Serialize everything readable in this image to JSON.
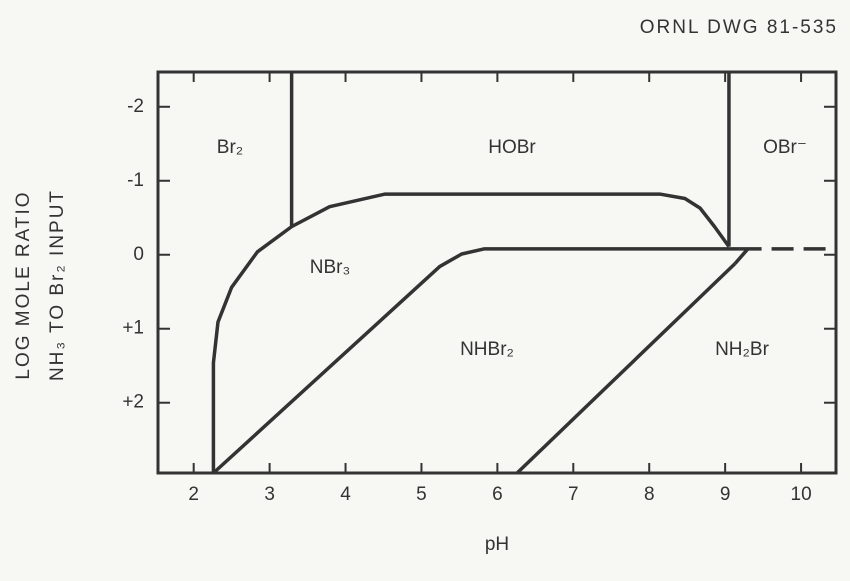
{
  "chart_data": {
    "type": "line",
    "note": "ORNL  DWG  81-535",
    "xlabel": "pH",
    "ylabel": [
      "LOG MOLE RATIO",
      "NH₃ TO Br₂ INPUT"
    ],
    "xlim": [
      1.53,
      10.46
    ],
    "ylim": [
      2.95,
      -2.47
    ],
    "xticks": [
      2,
      3,
      4,
      5,
      6,
      7,
      8,
      9,
      10
    ],
    "yticks": [
      -2,
      -1,
      0,
      {
        "value": 1,
        "label": "+1"
      },
      {
        "value": 2,
        "label": "+2"
      }
    ],
    "color": "#333333",
    "region_labels": [
      "Br₂",
      "HOBr",
      "OBr⁻",
      "NBr₃",
      "NHBr₂",
      "NH₂Br"
    ],
    "series": [
      {
        "style": "solid",
        "x": [
          3.29,
          3.29
        ],
        "y": [
          -2.47,
          -0.38
        ]
      },
      {
        "style": "solid",
        "x": [
          9.05,
          9.05
        ],
        "y": [
          -2.47,
          -0.11
        ]
      },
      {
        "style": "solid",
        "x": [
          2.26,
          2.26,
          2.32,
          2.5,
          2.84,
          3.29,
          3.79,
          4.52,
          8.14,
          8.47,
          8.67,
          8.86,
          9.05
        ],
        "y": [
          2.95,
          1.46,
          0.91,
          0.44,
          -0.04,
          -0.38,
          -0.65,
          -0.82,
          -0.82,
          -0.76,
          -0.63,
          -0.38,
          -0.11
        ]
      },
      {
        "style": "solid",
        "x": [
          2.26,
          5.24,
          5.53,
          5.83,
          9.19
        ],
        "y": [
          2.95,
          0.16,
          -0.01,
          -0.08,
          -0.08
        ]
      },
      {
        "style": "dashed",
        "x": [
          9.19,
          10.46
        ],
        "y": [
          -0.08,
          -0.08
        ]
      },
      {
        "style": "solid",
        "x": [
          6.26,
          9.13
        ],
        "y": [
          2.95,
          0.12
        ]
      },
      {
        "style": "dashed",
        "x": [
          9.13,
          9.3
        ],
        "y": [
          0.12,
          -0.08
        ]
      }
    ]
  }
}
